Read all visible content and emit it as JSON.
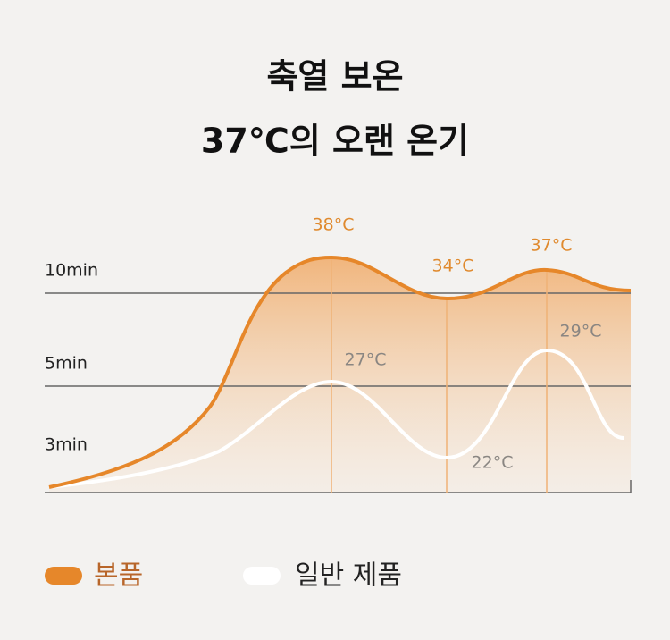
{
  "title": [
    "축열 보온",
    "37℃의 오랜 온기"
  ],
  "y_labels": [
    "10min",
    "5min",
    "3min"
  ],
  "annotations": {
    "product": [
      "38°C",
      "34°C",
      "37°C"
    ],
    "regular": [
      "27°C",
      "22°C",
      "29°C"
    ]
  },
  "legend": [
    "본품",
    "일반 제품"
  ]
}
